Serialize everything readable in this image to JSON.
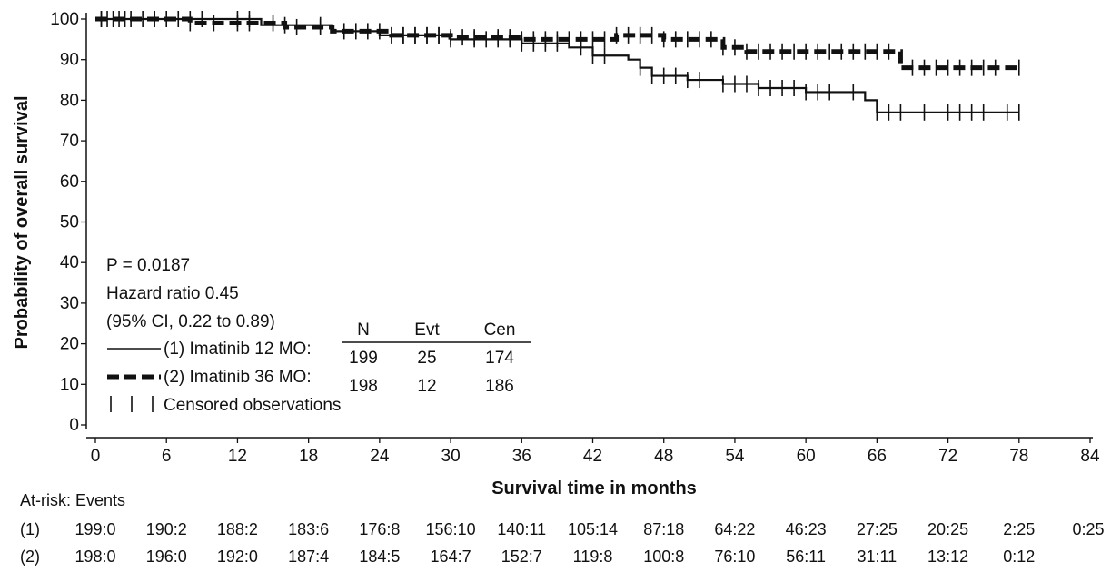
{
  "chart_data": {
    "type": "line",
    "title": "",
    "xlabel": "Survival time in months",
    "ylabel": "Probability of overall survival",
    "xlim": [
      0,
      84
    ],
    "ylim": [
      0,
      100
    ],
    "x_ticks": [
      "0",
      "6",
      "12",
      "18",
      "24",
      "30",
      "36",
      "42",
      "48",
      "54",
      "60",
      "66",
      "72",
      "78",
      "84"
    ],
    "y_ticks": [
      "0",
      "10",
      "20",
      "30",
      "40",
      "50",
      "60",
      "70",
      "80",
      "90",
      "100"
    ],
    "grid": false,
    "series": [
      {
        "name": "(1) Imatinib 12 MO",
        "style": "solid",
        "x": [
          0,
          14,
          20,
          24,
          30,
          36,
          40,
          42,
          45,
          46,
          47,
          50,
          53,
          56,
          60,
          65,
          66,
          78
        ],
        "y": [
          100,
          98.5,
          97,
          96,
          95,
          94,
          93,
          91,
          90,
          88,
          86,
          85,
          84,
          83,
          82,
          80,
          77,
          77
        ],
        "censored_x": [
          0.5,
          1,
          2,
          3,
          5,
          8,
          9,
          12,
          13,
          16,
          19,
          22,
          25,
          26,
          27,
          28,
          29,
          30,
          32,
          33,
          34,
          35,
          36,
          37,
          38,
          39,
          41,
          42,
          43,
          46,
          47,
          48,
          49,
          50,
          51,
          53,
          54,
          55,
          56,
          57,
          58,
          59,
          60,
          61,
          62,
          64,
          66,
          67,
          68,
          70,
          72,
          73,
          74,
          75,
          77,
          78
        ]
      },
      {
        "name": "(2) Imatinib 36 MO",
        "style": "dashed",
        "x": [
          0,
          8,
          16,
          20,
          25,
          30,
          36,
          40,
          44,
          48,
          50,
          53,
          55,
          60,
          65,
          68,
          78
        ],
        "y": [
          100,
          99,
          98,
          97,
          96,
          95.5,
          95,
          95,
          96,
          95,
          95,
          93,
          92,
          92,
          92,
          88,
          88
        ],
        "censored_x": [
          0.5,
          1.5,
          2.5,
          4,
          6,
          7,
          8,
          10,
          12,
          13,
          15,
          17,
          19,
          21,
          23,
          24,
          26,
          27,
          28,
          29,
          30,
          31,
          32,
          34,
          35,
          36,
          37,
          38,
          39,
          40,
          41,
          42,
          43,
          44,
          45,
          46,
          47,
          48,
          49,
          50,
          51,
          52,
          53,
          54,
          55,
          56,
          57,
          58,
          59,
          60,
          61,
          62,
          63,
          64,
          65,
          66,
          67,
          69,
          70,
          71,
          72,
          73,
          74,
          75,
          76,
          78
        ]
      }
    ],
    "annotations": {
      "p_value": "P = 0.0187",
      "hazard_ratio": "Hazard ratio 0.45",
      "ci": "(95% CI, 0.22 to 0.89)",
      "legend": [
        {
          "label": "(1) Imatinib 12 MO:",
          "style": "solid"
        },
        {
          "label": "(2) Imatinib 36 MO:",
          "style": "dashed"
        },
        {
          "label": "Censored observations",
          "style": "censor"
        }
      ],
      "table": {
        "headers": [
          "N",
          "Evt",
          "Cen"
        ],
        "rows": [
          [
            "199",
            "25",
            "174"
          ],
          [
            "198",
            "12",
            "186"
          ]
        ]
      }
    },
    "at_risk": {
      "title": "At-risk: Events",
      "rows": [
        {
          "label": "(1)",
          "values": [
            "199:0",
            "190:2",
            "188:2",
            "183:6",
            "176:8",
            "156:10",
            "140:11",
            "105:14",
            "87:18",
            "64:22",
            "46:23",
            "27:25",
            "20:25",
            "2:25",
            "0:25"
          ]
        },
        {
          "label": "(2)",
          "values": [
            "198:0",
            "196:0",
            "192:0",
            "187:4",
            "184:5",
            "164:7",
            "152:7",
            "119:8",
            "100:8",
            "76:10",
            "56:11",
            "31:11",
            "13:12",
            "0:12"
          ]
        }
      ]
    }
  }
}
